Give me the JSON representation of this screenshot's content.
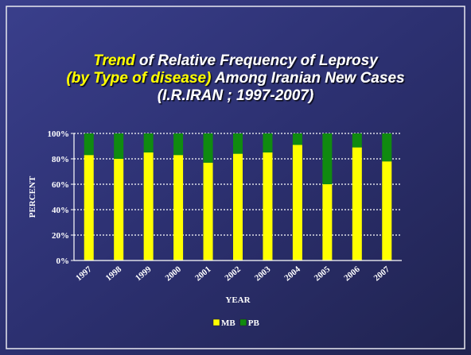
{
  "chart_data": {
    "type": "stacked_bar",
    "title_lines": [
      [
        {
          "text": "Trend",
          "color": "#ffff00"
        },
        {
          "text": " of Relative Frequency of Leprosy",
          "color": "#ffffff"
        }
      ],
      [
        {
          "text": "(by Type of disease)",
          "color": "#ffff00"
        },
        {
          "text": " Among Iranian New Cases",
          "color": "#ffffff"
        }
      ],
      [
        {
          "text": "(I.R.IRAN ; 1997-2007)",
          "color": "#ffffff"
        }
      ]
    ],
    "x_label": "YEAR",
    "y_label": "PERCENT",
    "categories": [
      "1997",
      "1998",
      "1999",
      "2000",
      "2001",
      "2002",
      "2003",
      "2004",
      "2005",
      "2006",
      "2007"
    ],
    "series": [
      {
        "name": "MB",
        "color": "#ffff00",
        "values": [
          83,
          80,
          85,
          83,
          77,
          84,
          85,
          91,
          60,
          89,
          78
        ]
      },
      {
        "name": "PB",
        "color": "#108a10",
        "values": [
          17,
          20,
          15,
          17,
          23,
          16,
          15,
          9,
          40,
          11,
          22
        ]
      }
    ],
    "ylim": [
      0,
      100
    ],
    "yticks": [
      {
        "value": 0,
        "label": "0%"
      },
      {
        "value": 20,
        "label": "20%"
      },
      {
        "value": 40,
        "label": "40%"
      },
      {
        "value": 60,
        "label": "60%"
      },
      {
        "value": 80,
        "label": "80%"
      },
      {
        "value": 100,
        "label": "100%"
      }
    ],
    "grid": true,
    "legend": "bottom"
  }
}
